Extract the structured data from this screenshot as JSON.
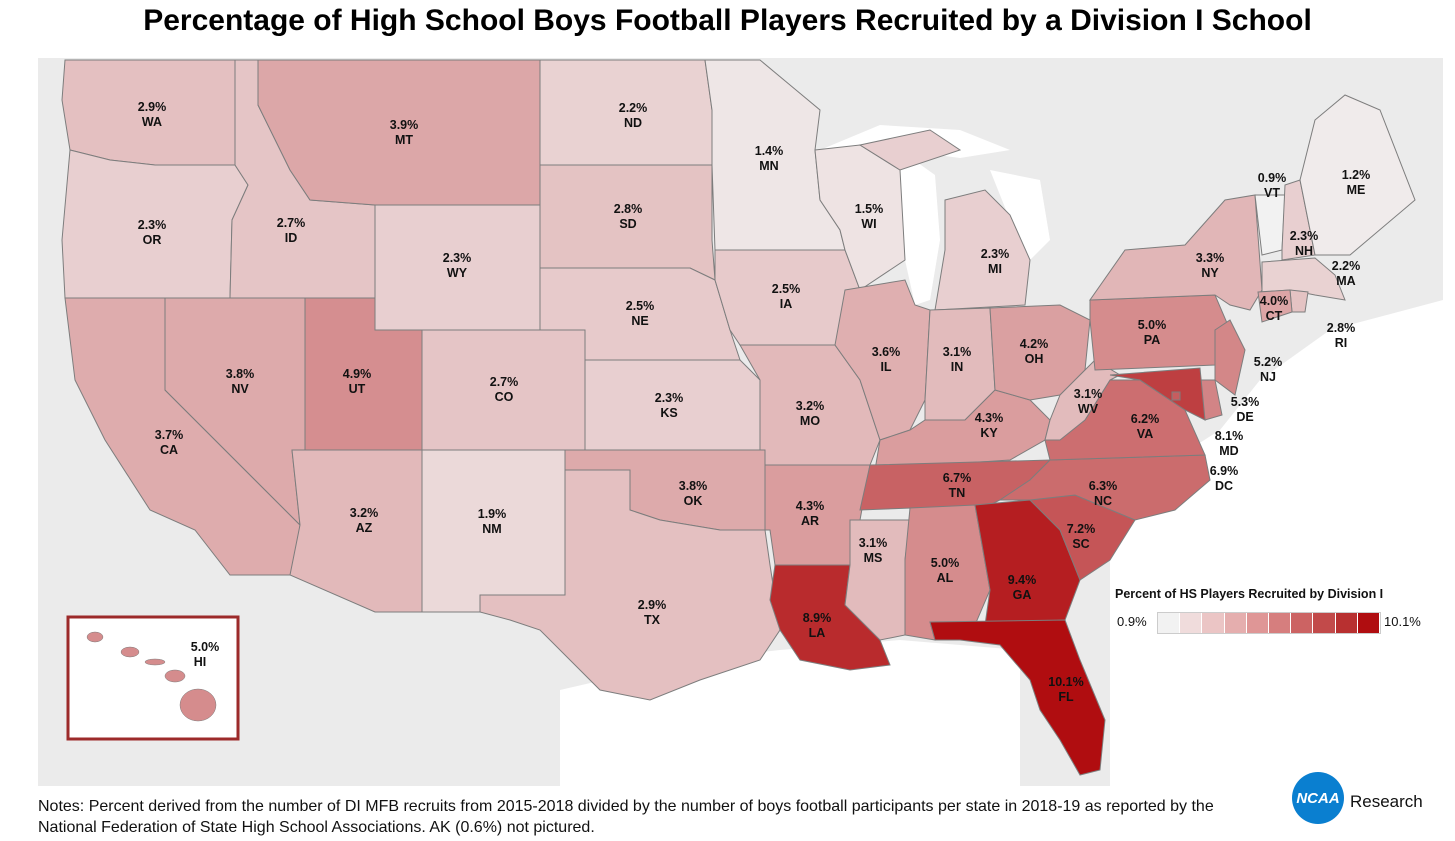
{
  "title": "Percentage of High School Boys Football Players Recruited by a Division I School",
  "legend": {
    "title": "Percent of HS Players Recruited by Division I",
    "min_label": "0.9%",
    "max_label": "10.1%",
    "min_color": "#f2f2f2",
    "max_color": "#b00d10",
    "steps": [
      "#f2f2f2",
      "#f0dcdc",
      "#ebc5c5",
      "#e5aeae",
      "#df9696",
      "#d67e7e",
      "#cc6363",
      "#c24a4a",
      "#b83030",
      "#b00d10"
    ]
  },
  "states": [
    {
      "id": "WA",
      "value": "2.9%",
      "name": "WA"
    },
    {
      "id": "OR",
      "value": "2.3%",
      "name": "OR"
    },
    {
      "id": "CA",
      "value": "3.7%",
      "name": "CA"
    },
    {
      "id": "ID",
      "value": "2.7%",
      "name": "ID"
    },
    {
      "id": "NV",
      "value": "3.8%",
      "name": "NV"
    },
    {
      "id": "MT",
      "value": "3.9%",
      "name": "MT"
    },
    {
      "id": "WY",
      "value": "2.3%",
      "name": "WY"
    },
    {
      "id": "UT",
      "value": "4.9%",
      "name": "UT"
    },
    {
      "id": "AZ",
      "value": "3.2%",
      "name": "AZ"
    },
    {
      "id": "CO",
      "value": "2.7%",
      "name": "CO"
    },
    {
      "id": "NM",
      "value": "1.9%",
      "name": "NM"
    },
    {
      "id": "ND",
      "value": "2.2%",
      "name": "ND"
    },
    {
      "id": "SD",
      "value": "2.8%",
      "name": "SD"
    },
    {
      "id": "NE",
      "value": "2.5%",
      "name": "NE"
    },
    {
      "id": "KS",
      "value": "2.3%",
      "name": "KS"
    },
    {
      "id": "OK",
      "value": "3.8%",
      "name": "OK"
    },
    {
      "id": "TX",
      "value": "2.9%",
      "name": "TX"
    },
    {
      "id": "MN",
      "value": "1.4%",
      "name": "MN"
    },
    {
      "id": "IA",
      "value": "2.5%",
      "name": "IA"
    },
    {
      "id": "MO",
      "value": "3.2%",
      "name": "MO"
    },
    {
      "id": "AR",
      "value": "4.3%",
      "name": "AR"
    },
    {
      "id": "LA",
      "value": "8.9%",
      "name": "LA"
    },
    {
      "id": "WI",
      "value": "1.5%",
      "name": "WI"
    },
    {
      "id": "IL",
      "value": "3.6%",
      "name": "IL"
    },
    {
      "id": "MS",
      "value": "3.1%",
      "name": "MS"
    },
    {
      "id": "MI",
      "value": "2.3%",
      "name": "MI"
    },
    {
      "id": "IN",
      "value": "3.1%",
      "name": "IN"
    },
    {
      "id": "KY",
      "value": "4.3%",
      "name": "KY"
    },
    {
      "id": "TN",
      "value": "6.7%",
      "name": "TN"
    },
    {
      "id": "AL",
      "value": "5.0%",
      "name": "AL"
    },
    {
      "id": "OH",
      "value": "4.2%",
      "name": "OH"
    },
    {
      "id": "GA",
      "value": "9.4%",
      "name": "GA"
    },
    {
      "id": "FL",
      "value": "10.1%",
      "name": "FL"
    },
    {
      "id": "SC",
      "value": "7.2%",
      "name": "SC"
    },
    {
      "id": "NC",
      "value": "6.3%",
      "name": "NC"
    },
    {
      "id": "VA",
      "value": "6.2%",
      "name": "VA"
    },
    {
      "id": "WV",
      "value": "3.1%",
      "name": "WV"
    },
    {
      "id": "PA",
      "value": "5.0%",
      "name": "PA"
    },
    {
      "id": "NY",
      "value": "3.3%",
      "name": "NY"
    },
    {
      "id": "VT",
      "value": "0.9%",
      "name": "VT"
    },
    {
      "id": "NH",
      "value": "2.3%",
      "name": "NH"
    },
    {
      "id": "ME",
      "value": "1.2%",
      "name": "ME"
    },
    {
      "id": "MA",
      "value": "2.2%",
      "name": "MA"
    },
    {
      "id": "RI",
      "value": "2.8%",
      "name": "RI"
    },
    {
      "id": "CT",
      "value": "4.0%",
      "name": "CT"
    },
    {
      "id": "NJ",
      "value": "5.2%",
      "name": "NJ"
    },
    {
      "id": "DE",
      "value": "5.3%",
      "name": "DE"
    },
    {
      "id": "MD",
      "value": "8.1%",
      "name": "MD"
    },
    {
      "id": "DC",
      "value": "6.9%",
      "name": "DC"
    },
    {
      "id": "HI",
      "value": "5.0%",
      "name": "HI"
    }
  ],
  "notes": "Notes: Percent derived from the number of DI MFB recruits from 2015-2018 divided by the number of boys football participants per state in 2018-19 as reported by the National Federation of State High School Associations. AK (0.6%) not pictured.",
  "brand": {
    "logo_text": "NCAA",
    "research_label": "Research",
    "logo_color": "#0a7fd0"
  }
}
